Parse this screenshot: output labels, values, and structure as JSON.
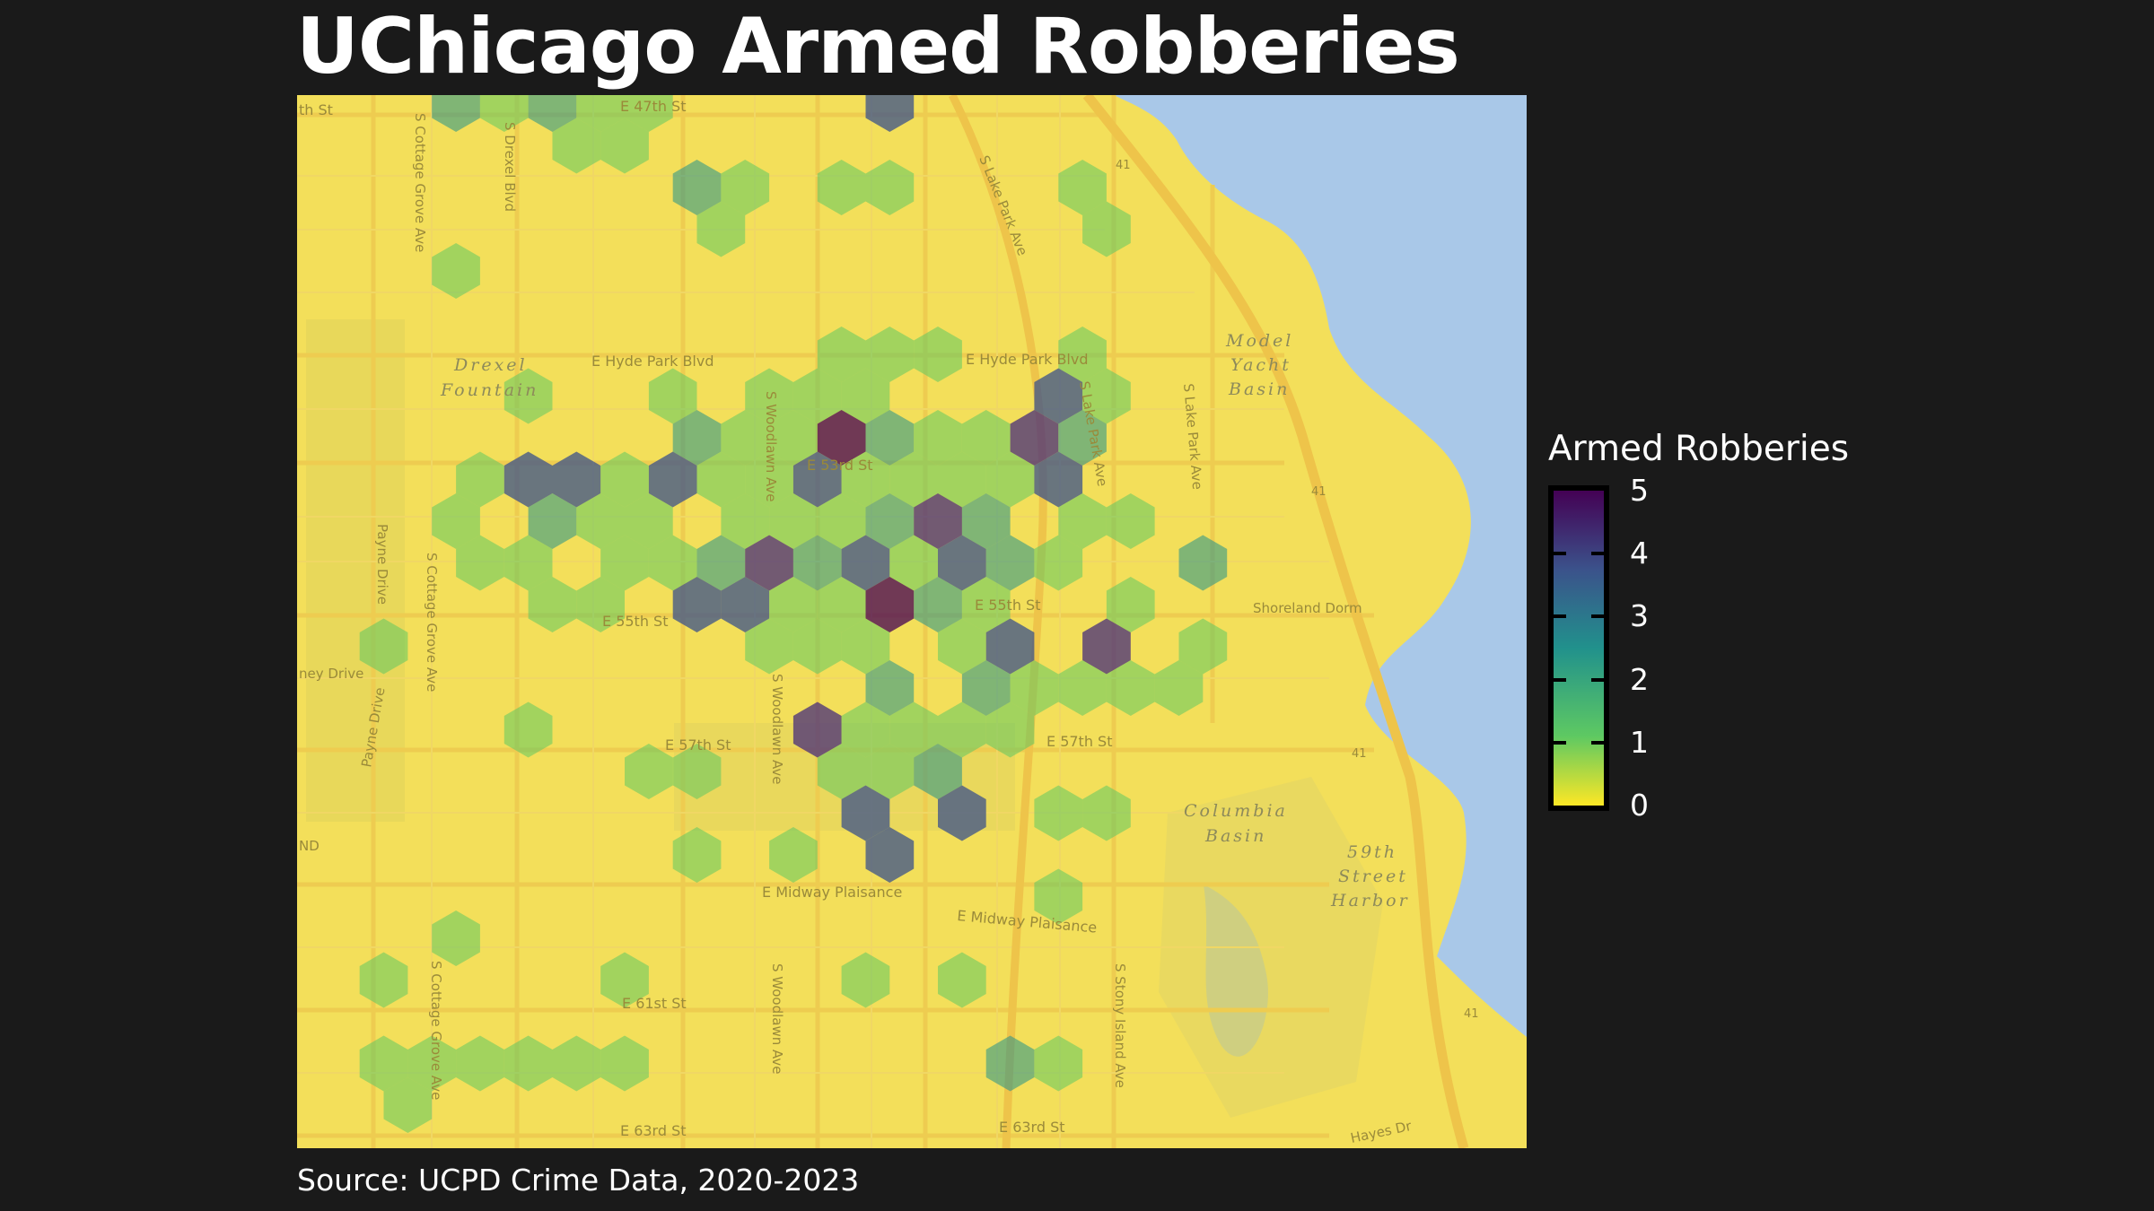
{
  "title": "UChicago Armed Robberies",
  "source": "Source: UCPD Crime Data, 2020-2023",
  "legend": {
    "title": "Armed Robberies",
    "ticks": [
      "5",
      "4",
      "3",
      "2",
      "1",
      "0"
    ]
  },
  "colors": {
    "background": "#1a1a1a",
    "map_land": "#f3df5a",
    "water": "#a9c8e8",
    "scale_low": "#fde725",
    "scale_high": "#440154"
  },
  "map_labels": {
    "e47th": "E 47th St",
    "e47th_left": "th St",
    "drexel_blvd": "S Drexel Blvd",
    "cottage_grove_top": "S Cottage Grove Ave",
    "lake_park": "S Lake Park Ave",
    "route41_a": "41",
    "hyde_park_blvd_w": "E Hyde Park Blvd",
    "hyde_park_blvd_e": "E Hyde Park Blvd",
    "drexel_fountain_1": "Drexel",
    "drexel_fountain_2": "Fountain",
    "model_yacht_1": "Model",
    "model_yacht_2": "Yacht",
    "model_yacht_3": "Basin",
    "woodlawn_top": "S Woodlawn Ave",
    "e53rd": "E 53rd St",
    "lake_park_2": "S Lake Park Ave",
    "lake_park_3": "S Lake Park Ave",
    "route41_b": "41",
    "payne_drive": "Payne Drive",
    "cottage_grove_mid": "S Cottage Grove Ave",
    "e55th_w": "E 55th St",
    "e55th_e": "E 55th St",
    "shoreland": "Shoreland Dorm",
    "ney_drive": "ney Drive",
    "woodlawn_mid": "S Woodlawn Ave",
    "e57th_w": "E 57th St",
    "e57th_e": "E 57th St",
    "route41_c": "41",
    "columbia_1": "Columbia",
    "columbia_2": "Basin",
    "payne_drive_2": "Payne Drive",
    "nd": "ND",
    "harbor_1": "59th",
    "harbor_2": "Street",
    "harbor_3": "Harbor",
    "midway_w": "E Midway Plaisance",
    "midway_e": "E Midway Plaisance",
    "e61st": "E 61st St",
    "woodlawn_low": "S Woodlawn Ave",
    "stony_island": "S Stony Island Ave",
    "cottage_grove_low": "S Cottage Grove Ave",
    "route41_d": "41",
    "e63rd_w": "E 63rd St",
    "e63rd_e": "E 63rd St",
    "hayes": "Hayes Dr"
  },
  "hexbins": {
    "hex_radius_note": "counts per hex cell",
    "cells": [
      [
        3,
        0,
        2
      ],
      [
        4,
        0,
        1
      ],
      [
        5,
        0,
        2
      ],
      [
        6,
        0,
        1
      ],
      [
        7,
        0,
        1
      ],
      [
        12,
        0,
        3
      ],
      [
        6,
        1,
        1
      ],
      [
        5,
        1,
        1
      ],
      [
        8,
        2,
        2
      ],
      [
        9,
        2,
        1
      ],
      [
        11,
        2,
        1
      ],
      [
        12,
        2,
        1
      ],
      [
        16,
        2,
        1
      ],
      [
        8,
        3,
        1
      ],
      [
        16,
        3,
        1
      ],
      [
        3,
        4,
        1
      ],
      [
        11,
        6,
        1
      ],
      [
        12,
        6,
        1
      ],
      [
        13,
        6,
        1
      ],
      [
        16,
        6,
        1
      ],
      [
        4,
        7,
        1
      ],
      [
        7,
        7,
        1
      ],
      [
        9,
        7,
        1
      ],
      [
        10,
        7,
        1
      ],
      [
        11,
        7,
        1
      ],
      [
        15,
        7,
        3
      ],
      [
        16,
        7,
        1
      ],
      [
        8,
        8,
        2
      ],
      [
        9,
        8,
        1
      ],
      [
        10,
        8,
        1
      ],
      [
        11,
        8,
        5
      ],
      [
        12,
        8,
        2
      ],
      [
        13,
        8,
        1
      ],
      [
        14,
        8,
        1
      ],
      [
        15,
        8,
        4
      ],
      [
        16,
        8,
        2
      ],
      [
        3,
        9,
        1
      ],
      [
        4,
        9,
        3
      ],
      [
        5,
        9,
        3
      ],
      [
        6,
        9,
        1
      ],
      [
        7,
        9,
        3
      ],
      [
        8,
        9,
        1
      ],
      [
        9,
        9,
        1
      ],
      [
        10,
        9,
        3
      ],
      [
        11,
        9,
        1
      ],
      [
        12,
        9,
        1
      ],
      [
        13,
        9,
        1
      ],
      [
        14,
        9,
        1
      ],
      [
        15,
        9,
        3
      ],
      [
        3,
        10,
        1
      ],
      [
        5,
        10,
        2
      ],
      [
        6,
        10,
        1
      ],
      [
        7,
        10,
        1
      ],
      [
        9,
        10,
        1
      ],
      [
        10,
        10,
        1
      ],
      [
        11,
        10,
        1
      ],
      [
        12,
        10,
        2
      ],
      [
        13,
        10,
        4
      ],
      [
        14,
        10,
        2
      ],
      [
        16,
        10,
        1
      ],
      [
        17,
        10,
        1
      ],
      [
        3,
        11,
        1
      ],
      [
        4,
        11,
        1
      ],
      [
        6,
        11,
        1
      ],
      [
        7,
        11,
        1
      ],
      [
        8,
        11,
        2
      ],
      [
        9,
        11,
        4
      ],
      [
        10,
        11,
        2
      ],
      [
        11,
        11,
        3
      ],
      [
        12,
        11,
        1
      ],
      [
        13,
        11,
        3
      ],
      [
        14,
        11,
        2
      ],
      [
        15,
        11,
        1
      ],
      [
        18,
        11,
        2
      ],
      [
        5,
        12,
        1
      ],
      [
        6,
        12,
        1
      ],
      [
        8,
        12,
        3
      ],
      [
        9,
        12,
        3
      ],
      [
        10,
        12,
        1
      ],
      [
        11,
        12,
        1
      ],
      [
        12,
        12,
        5
      ],
      [
        13,
        12,
        2
      ],
      [
        14,
        12,
        1
      ],
      [
        17,
        12,
        1
      ],
      [
        1,
        13,
        1
      ],
      [
        9,
        13,
        1
      ],
      [
        10,
        13,
        1
      ],
      [
        11,
        13,
        1
      ],
      [
        13,
        13,
        1
      ],
      [
        14,
        13,
        3
      ],
      [
        16,
        13,
        4
      ],
      [
        18,
        13,
        1
      ],
      [
        12,
        14,
        2
      ],
      [
        14,
        14,
        2
      ],
      [
        15,
        14,
        1
      ],
      [
        16,
        14,
        1
      ],
      [
        17,
        14,
        1
      ],
      [
        18,
        14,
        1
      ],
      [
        4,
        15,
        1
      ],
      [
        10,
        15,
        4
      ],
      [
        11,
        15,
        1
      ],
      [
        12,
        15,
        1
      ],
      [
        13,
        15,
        1
      ],
      [
        14,
        15,
        1
      ],
      [
        7,
        16,
        1
      ],
      [
        8,
        16,
        1
      ],
      [
        11,
        16,
        1
      ],
      [
        12,
        16,
        1
      ],
      [
        13,
        16,
        2
      ],
      [
        11,
        17,
        3
      ],
      [
        13,
        17,
        3
      ],
      [
        15,
        17,
        1
      ],
      [
        16,
        17,
        1
      ],
      [
        8,
        18,
        1
      ],
      [
        10,
        18,
        1
      ],
      [
        12,
        18,
        3
      ],
      [
        15,
        19,
        1
      ],
      [
        3,
        20,
        1
      ],
      [
        1,
        21,
        1
      ],
      [
        6,
        21,
        1
      ],
      [
        11,
        21,
        1
      ],
      [
        13,
        21,
        1
      ],
      [
        1,
        23,
        1
      ],
      [
        2,
        23,
        1
      ],
      [
        3,
        23,
        1
      ],
      [
        4,
        23,
        1
      ],
      [
        5,
        23,
        1
      ],
      [
        6,
        23,
        1
      ],
      [
        14,
        23,
        2
      ],
      [
        15,
        23,
        1
      ],
      [
        2,
        24,
        1
      ],
      [
        10,
        26,
        1
      ],
      [
        13,
        26,
        1
      ]
    ]
  }
}
